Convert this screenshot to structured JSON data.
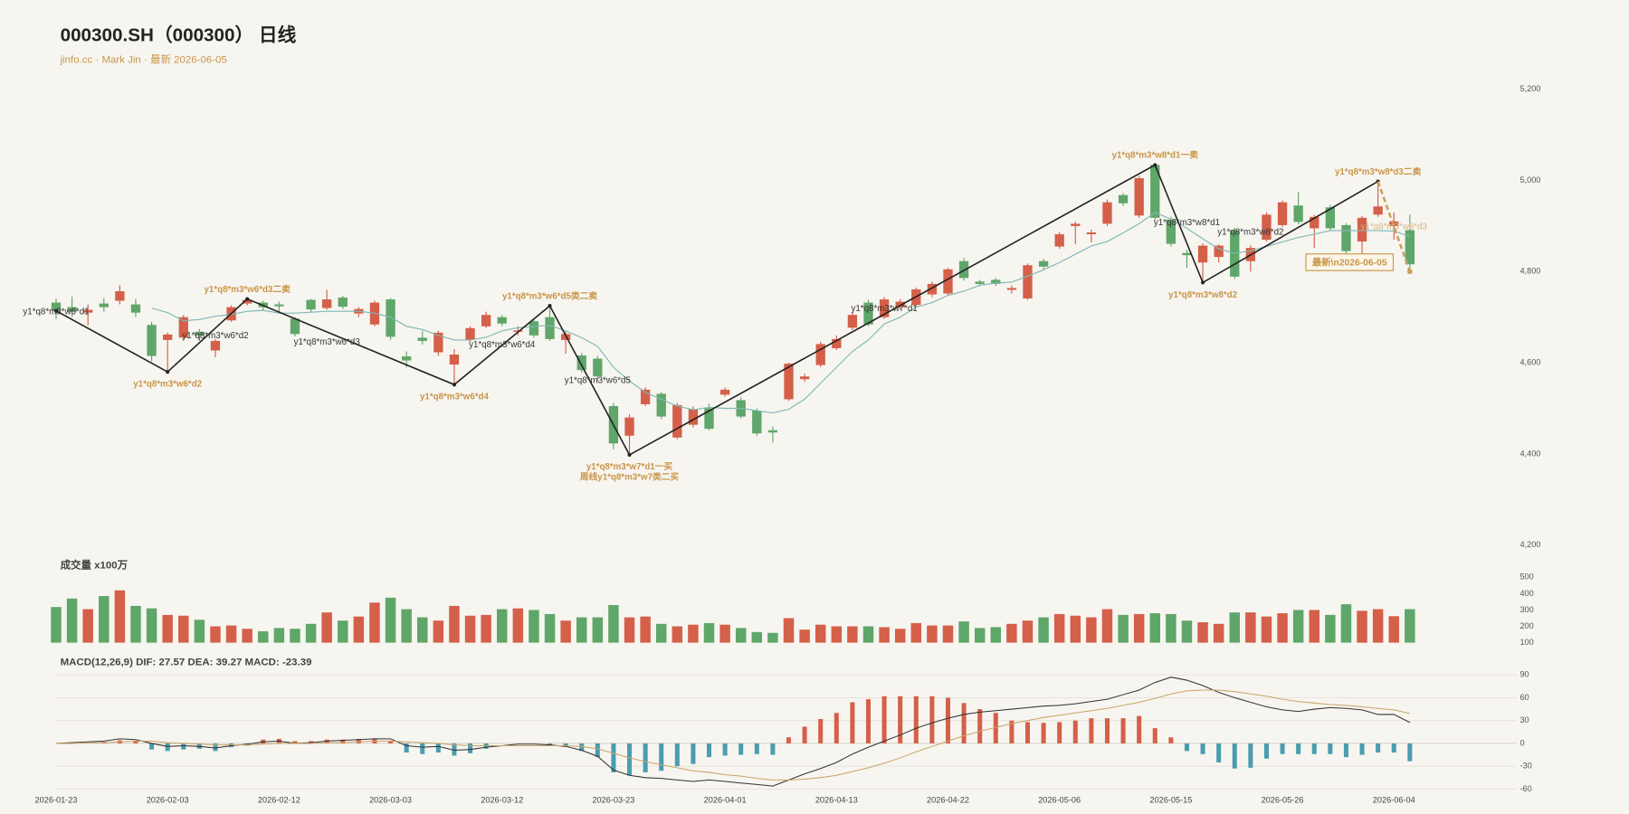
{
  "chart_data": [
    {
      "type": "candlestick",
      "title": "000300.SH（000300） 日线",
      "subtitle": "jinfo.cc · Mark Jin · 最新 2026-06-05",
      "categories": [
        "2026-01-23",
        null,
        null,
        null,
        null,
        null,
        null,
        "2026-02-03",
        null,
        null,
        null,
        null,
        null,
        null,
        "2026-02-12",
        null,
        null,
        null,
        null,
        null,
        null,
        "2026-03-03",
        null,
        null,
        null,
        null,
        null,
        null,
        "2026-03-12",
        null,
        null,
        null,
        null,
        null,
        null,
        "2026-03-23",
        null,
        null,
        null,
        null,
        null,
        null,
        "2026-04-01",
        null,
        null,
        null,
        null,
        null,
        null,
        "2026-04-13",
        null,
        null,
        null,
        null,
        null,
        null,
        "2026-04-22",
        null,
        null,
        null,
        null,
        null,
        null,
        "2026-05-06",
        null,
        null,
        null,
        null,
        null,
        null,
        "2026-05-15",
        null,
        null,
        null,
        null,
        null,
        null,
        "2026-05-26",
        null,
        null,
        null,
        null,
        null,
        null,
        "2026-06-04",
        null
      ],
      "open": [
        4732,
        4722,
        4710,
        4730,
        4736,
        4728,
        4683,
        4650,
        4655,
        4668,
        4627,
        4693,
        4730,
        4732,
        4728,
        4697,
        4738,
        4720,
        4743,
        4708,
        4684,
        4739,
        4614,
        4655,
        4623,
        4596,
        4650,
        4680,
        4700,
        4668,
        4691,
        4700,
        4650,
        4616,
        4609,
        4505,
        4440,
        4509,
        4532,
        4436,
        4464,
        4500,
        4530,
        4518,
        4495,
        4452,
        4520,
        4564,
        4595,
        4632,
        4677,
        4732,
        4700,
        4722,
        4727,
        4750,
        4752,
        4823,
        4778,
        4782,
        4760,
        4741,
        4823,
        4855,
        4900,
        4882,
        4905,
        4968,
        4923,
        5034,
        4914,
        4841,
        4820,
        4832,
        4891,
        4823,
        4870,
        4902,
        4945,
        4895,
        4941,
        4902,
        4866,
        4925,
        4900,
        4891
      ],
      "close": [
        4714,
        4712,
        4716,
        4722,
        4757,
        4710,
        4615,
        4662,
        4700,
        4660,
        4648,
        4722,
        4738,
        4722,
        4724,
        4663,
        4717,
        4739,
        4723,
        4718,
        4732,
        4657,
        4605,
        4648,
        4666,
        4618,
        4676,
        4705,
        4686,
        4671,
        4660,
        4652,
        4663,
        4584,
        4570,
        4423,
        4480,
        4541,
        4482,
        4507,
        4498,
        4455,
        4541,
        4482,
        4445,
        4447,
        4598,
        4570,
        4641,
        4652,
        4705,
        4684,
        4739,
        4734,
        4761,
        4773,
        4805,
        4786,
        4773,
        4773,
        4764,
        4814,
        4811,
        4882,
        4905,
        4886,
        4952,
        4950,
        5005,
        4918,
        4861,
        4836,
        4857,
        4857,
        4789,
        4852,
        4925,
        4952,
        4909,
        4920,
        4895,
        4845,
        4918,
        4943,
        4910,
        4816
      ],
      "high": [
        4741,
        4745,
        4728,
        4742,
        4770,
        4740,
        4690,
        4666,
        4705,
        4674,
        4652,
        4726,
        4740,
        4736,
        4734,
        4700,
        4740,
        4760,
        4747,
        4722,
        4736,
        4742,
        4625,
        4670,
        4670,
        4630,
        4680,
        4712,
        4705,
        4680,
        4695,
        4725,
        4668,
        4622,
        4615,
        4512,
        4487,
        4546,
        4536,
        4512,
        4504,
        4510,
        4546,
        4524,
        4500,
        4460,
        4600,
        4576,
        4646,
        4660,
        4712,
        4738,
        4744,
        4740,
        4765,
        4778,
        4808,
        4830,
        4782,
        4786,
        4770,
        4818,
        4828,
        4887,
        4910,
        4892,
        4958,
        4972,
        5010,
        5034,
        4920,
        4848,
        4862,
        4860,
        4896,
        4858,
        4930,
        4956,
        4975,
        4925,
        4946,
        4906,
        4922,
        4998,
        4930,
        4925
      ],
      "low": [
        4696,
        4700,
        4682,
        4712,
        4728,
        4700,
        4603,
        4580,
        4648,
        4648,
        4612,
        4690,
        4726,
        4716,
        4712,
        4658,
        4712,
        4716,
        4718,
        4700,
        4680,
        4650,
        4590,
        4640,
        4615,
        4552,
        4645,
        4676,
        4680,
        4660,
        4655,
        4648,
        4620,
        4578,
        4560,
        4410,
        4398,
        4505,
        4476,
        4432,
        4458,
        4452,
        4526,
        4478,
        4440,
        4425,
        4516,
        4558,
        4590,
        4628,
        4672,
        4680,
        4696,
        4716,
        4722,
        4744,
        4748,
        4780,
        4768,
        4768,
        4752,
        4738,
        4806,
        4850,
        4860,
        4864,
        4900,
        4944,
        4918,
        4912,
        4855,
        4808,
        4776,
        4820,
        4784,
        4800,
        4866,
        4898,
        4904,
        4852,
        4890,
        4840,
        4840,
        4920,
        4870,
        4800
      ],
      "up_color": "#d4604a",
      "down_color": "#5fa66a",
      "ma": {
        "color": "#7fb8b4",
        "values": [
          null,
          null,
          null,
          null,
          null,
          null,
          4720,
          4710,
          4692,
          4695,
          4702,
          4706,
          4713,
          4715,
          4709,
          4709,
          4711,
          4713,
          4713,
          4713,
          4709,
          4700,
          4680,
          4673,
          4660,
          4650,
          4650,
          4656,
          4670,
          4677,
          4680,
          4682,
          4670,
          4655,
          4636,
          4590,
          4560,
          4535,
          4520,
          4505,
          4497,
          4502,
          4500,
          4500,
          4495,
          4490,
          4498,
          4520,
          4555,
          4590,
          4625,
          4650,
          4685,
          4700,
          4722,
          4732,
          4748,
          4757,
          4770,
          4775,
          4777,
          4790,
          4804,
          4820,
          4838,
          4856,
          4866,
          4885,
          4905,
          4930,
          4915,
          4895,
          4872,
          4850,
          4840,
          4846,
          4855,
          4865,
          4875,
          4882,
          4890,
          4890,
          4890,
          4890,
          4889,
          4877
        ]
      },
      "zigzag": {
        "color": "#222222",
        "label_color": "#c8964a",
        "points": [
          {
            "index": 0,
            "value": 4714,
            "pos": "below",
            "labels": []
          },
          {
            "index": 7,
            "value": 4580,
            "pos": "below",
            "labels": [
              "y1*q8*m3*w6*d2"
            ]
          },
          {
            "index": 12,
            "value": 4740,
            "pos": "above",
            "labels": [
              "y1*q8*m3*w6*d3二卖"
            ]
          },
          {
            "index": 25,
            "value": 4552,
            "pos": "below",
            "labels": [
              "y1*q8*m3*w6*d4"
            ]
          },
          {
            "index": 31,
            "value": 4725,
            "pos": "above",
            "labels": [
              "y1*q8*m3*w6*d5类二卖"
            ]
          },
          {
            "index": 36,
            "value": 4398,
            "pos": "below",
            "labels": [
              "y1*q8*m3*w7*d1一买",
              "周线y1*q8*m3*w7类二买"
            ]
          },
          {
            "index": 69,
            "value": 5034,
            "pos": "above",
            "labels": [
              "y1*q8*m3*w8*d1一卖"
            ]
          },
          {
            "index": 72,
            "value": 4776,
            "pos": "below",
            "labels": [
              "y1*q8*m3*w8*d2"
            ]
          },
          {
            "index": 83,
            "value": 4998,
            "pos": "above",
            "labels": [
              "y1*q8*m3*w8*d3二卖"
            ]
          }
        ]
      },
      "projection": {
        "color": "#c8a05a",
        "points": [
          {
            "index": 83,
            "value": 4998
          },
          {
            "index": 85,
            "value": 4800
          }
        ]
      },
      "notes": [
        {
          "text": "y1*q8*m3*w6*d1",
          "index": 0,
          "value": 4711,
          "color": "#333333"
        },
        {
          "text": "y1*q8*m3*w6*d2",
          "index": 10,
          "value": 4659,
          "color": "#333333"
        },
        {
          "text": "y1*q8*m3*w6*d3",
          "index": 17,
          "value": 4645,
          "color": "#333333"
        },
        {
          "text": "y1*q8*m3*w6*d4",
          "index": 28,
          "value": 4639,
          "color": "#333333"
        },
        {
          "text": "y1*q8*m3*w6*d5",
          "index": 34,
          "value": 4561,
          "color": "#333333"
        },
        {
          "text": "y1*q8*m3*w7*d1",
          "index": 52,
          "value": 4718,
          "color": "#333333"
        },
        {
          "text": "y1*q8*m3*w8*d1",
          "index": 71,
          "value": 4907,
          "color": "#333333"
        },
        {
          "text": "y1*q8*m3*w8*d2",
          "index": 75,
          "value": 4886,
          "color": "#333333"
        },
        {
          "text": "y1*q8*m3*w8*d3",
          "index": 84,
          "value": 4898,
          "color": "#d6b783"
        }
      ],
      "latest": "最新\\n2026-06-05",
      "ylim": [
        4200,
        5200
      ],
      "yticks": [
        {
          "value": 4200,
          "label": "4,200"
        },
        {
          "value": 4400,
          "label": "4,400"
        },
        {
          "value": 4600,
          "label": "4,600"
        },
        {
          "value": 4800,
          "label": "4,800"
        },
        {
          "value": 5000,
          "label": "5,000"
        },
        {
          "value": 5200,
          "label": "5,200"
        }
      ],
      "grid": false
    },
    {
      "type": "bar",
      "title": "成交量 x100万",
      "values": [
        318,
        370,
        305,
        385,
        420,
        325,
        310,
        270,
        265,
        240,
        200,
        205,
        185,
        170,
        190,
        185,
        215,
        285,
        235,
        260,
        345,
        375,
        305,
        255,
        235,
        325,
        265,
        270,
        305,
        310,
        300,
        275,
        235,
        255,
        255,
        330,
        255,
        260,
        215,
        200,
        210,
        220,
        210,
        190,
        165,
        160,
        250,
        180,
        210,
        200,
        200,
        200,
        195,
        185,
        220,
        205,
        205,
        230,
        190,
        195,
        215,
        235,
        255,
        275,
        265,
        255,
        305,
        270,
        275,
        280,
        275,
        235,
        225,
        215,
        285,
        285,
        260,
        280,
        300,
        300,
        270,
        335,
        295,
        305,
        262,
        305
      ],
      "ylim": [
        100,
        500
      ],
      "yticks": [
        100,
        200,
        300,
        400,
        500
      ],
      "grid": false
    },
    {
      "type": "macd",
      "title": "MACD(12,26,9) DIF: 27.57 DEA: 39.27 MACD: -23.39",
      "series": [
        {
          "type": "line",
          "color": "#333333",
          "values": [
            0,
            1,
            2,
            3,
            6,
            5,
            0,
            -4,
            -3,
            -4,
            -6,
            -3,
            -1,
            2,
            3,
            0,
            1,
            3,
            4,
            5,
            6,
            6,
            -3,
            -5,
            -4,
            -9,
            -8,
            -5,
            -3,
            -1,
            -1,
            -2,
            -4,
            -9,
            -17,
            -35,
            -42,
            -45,
            -46,
            -48,
            -50,
            -48,
            -50,
            -52,
            -54,
            -56,
            -48,
            -40,
            -33,
            -25,
            -14,
            -5,
            3,
            11,
            20,
            27,
            33,
            38,
            41,
            43,
            45,
            47,
            49,
            50,
            52,
            55,
            58,
            64,
            70,
            80,
            87,
            83,
            76,
            67,
            60,
            54,
            48,
            44,
            42,
            45,
            47,
            46,
            44,
            38,
            38,
            27.57
          ]
        },
        {
          "type": "line",
          "color": "#c9a46a",
          "values": [
            0,
            0,
            1,
            1,
            2,
            3,
            3,
            1,
            0,
            -1,
            -2,
            -2,
            -2,
            -1,
            0,
            0,
            0,
            1,
            1,
            2,
            3,
            3,
            2,
            1,
            0,
            -2,
            -3,
            -3,
            -3,
            -3,
            -3,
            -3,
            -3,
            -4,
            -7,
            -13,
            -19,
            -24,
            -28,
            -32,
            -36,
            -38,
            -41,
            -43,
            -46,
            -48,
            -48,
            -47,
            -45,
            -42,
            -37,
            -32,
            -26,
            -19,
            -11,
            -4,
            3,
            10,
            16,
            21,
            26,
            30,
            34,
            37,
            40,
            43,
            46,
            50,
            54,
            59,
            65,
            69,
            70,
            70,
            68,
            65,
            62,
            58,
            55,
            53,
            51,
            50,
            48,
            46,
            44,
            39.27
          ]
        },
        {
          "type": "bar",
          "pos_color": "#d4604a",
          "neg_color": "#4a9db0",
          "values": [
            0,
            0,
            0,
            2,
            4,
            3,
            -8,
            -10,
            -8,
            -7,
            -10,
            -5,
            -3,
            5,
            6,
            3,
            3,
            5,
            5,
            6,
            6,
            3,
            -12,
            -14,
            -12,
            -16,
            -13,
            -7,
            0,
            0,
            0,
            -3,
            -3,
            -10,
            -18,
            -38,
            -42,
            -38,
            -36,
            -30,
            -27,
            -18,
            -16,
            -15,
            -14,
            -15,
            8,
            22,
            32,
            40,
            54,
            58,
            62,
            62,
            62,
            62,
            60,
            53,
            45,
            40,
            30,
            28,
            27,
            28,
            30,
            33,
            33,
            33,
            36,
            20,
            8,
            -10,
            -14,
            -25,
            -33,
            -32,
            -20,
            -14,
            -14,
            -14,
            -14,
            -18,
            -15,
            -12,
            -12,
            -23.39
          ]
        }
      ],
      "ylim": [
        -60,
        90
      ],
      "yticks": [
        -60,
        -30,
        0,
        30,
        60,
        90
      ],
      "grid": true
    }
  ]
}
